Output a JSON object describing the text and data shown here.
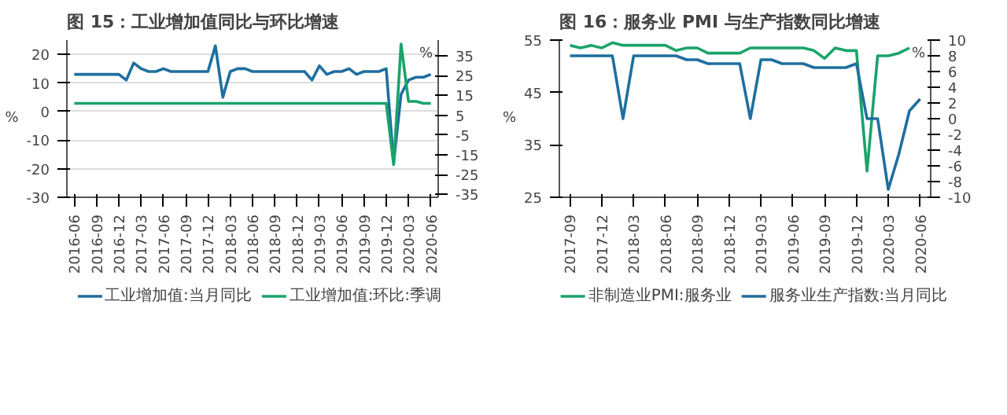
{
  "chart_data": [
    {
      "type": "line",
      "title": "图 15：工业增加值同比与环比增速",
      "ylabel": "%",
      "y2label": "%",
      "x": [
        "2016-06",
        "2016-07",
        "2016-08",
        "2016-09",
        "2016-10",
        "2016-11",
        "2016-12",
        "2017-01",
        "2017-02",
        "2017-03",
        "2017-04",
        "2017-05",
        "2017-06",
        "2017-07",
        "2017-08",
        "2017-09",
        "2017-10",
        "2017-11",
        "2017-12",
        "2018-01",
        "2018-02",
        "2018-03",
        "2018-04",
        "2018-05",
        "2018-06",
        "2018-07",
        "2018-08",
        "2018-09",
        "2018-10",
        "2018-11",
        "2018-12",
        "2019-01",
        "2019-02",
        "2019-03",
        "2019-04",
        "2019-05",
        "2019-06",
        "2019-07",
        "2019-08",
        "2019-09",
        "2019-10",
        "2019-11",
        "2019-12",
        "2020-01",
        "2020-02",
        "2020-03",
        "2020-04",
        "2020-05",
        "2020-06"
      ],
      "series": [
        {
          "name": "工业增加值:当月同比",
          "color": "#1f6f9f",
          "values": [
            13,
            13,
            13,
            13,
            13,
            13,
            13,
            11,
            17,
            15,
            14,
            14,
            15,
            14,
            14,
            14,
            14,
            14,
            14,
            23,
            5,
            14,
            15,
            15,
            14,
            14,
            14,
            14,
            14,
            14,
            14,
            14,
            11,
            16,
            13,
            14,
            14,
            15,
            13,
            14,
            14,
            14,
            15,
            -18,
            6,
            11,
            12,
            12,
            13
          ]
        },
        {
          "name": "工业增加值:环比:季调",
          "color": "#1aa36b",
          "axis": "y2",
          "values": [
            11,
            11,
            11,
            11,
            11,
            11,
            11,
            11,
            11,
            11,
            11,
            11,
            11,
            11,
            11,
            11,
            11,
            11,
            11,
            11,
            11,
            11,
            11,
            11,
            11,
            11,
            11,
            11,
            11,
            11,
            11,
            11,
            11,
            11,
            11,
            11,
            11,
            11,
            11,
            11,
            11,
            11,
            11,
            -20,
            41,
            12,
            12,
            11,
            11
          ]
        }
      ],
      "xlim": [
        "2016-05",
        "2020-07"
      ],
      "xticks": [
        "2016-06",
        "2016-09",
        "2016-12",
        "2017-03",
        "2017-06",
        "2017-09",
        "2017-12",
        "2018-03",
        "2018-06",
        "2018-09",
        "2018-12",
        "2019-03",
        "2019-06",
        "2019-09",
        "2019-12",
        "2020-03",
        "2020-06"
      ],
      "ylim": [
        -30,
        25
      ],
      "yticks": [
        -30,
        -20,
        -10,
        0,
        10,
        20
      ],
      "y2lim": [
        -36.5,
        43
      ],
      "y2ticks": [
        -35,
        -25,
        -15,
        -5,
        5,
        15,
        25,
        35
      ],
      "grid": "y",
      "legend": "bottom"
    },
    {
      "type": "line",
      "title": "图 16：服务业 PMI 与生产指数同比增速",
      "ylabel": "%",
      "y2label": "%",
      "x": [
        "2017-09",
        "2017-10",
        "2017-11",
        "2017-12",
        "2018-01",
        "2018-02",
        "2018-03",
        "2018-04",
        "2018-05",
        "2018-06",
        "2018-07",
        "2018-08",
        "2018-09",
        "2018-10",
        "2018-11",
        "2018-12",
        "2019-01",
        "2019-02",
        "2019-03",
        "2019-04",
        "2019-05",
        "2019-06",
        "2019-07",
        "2019-08",
        "2019-09",
        "2019-10",
        "2019-11",
        "2019-12",
        "2020-01",
        "2020-02",
        "2020-03",
        "2020-04",
        "2020-05",
        "2020-06"
      ],
      "series": [
        {
          "name": "非制造业PMI:服务业",
          "color": "#1aa36b",
          "values": [
            54,
            53.5,
            54,
            53.5,
            54.5,
            54,
            54,
            54,
            54,
            54,
            53,
            53.5,
            53.5,
            52.5,
            52.5,
            52.5,
            52.5,
            53.5,
            53.5,
            53.5,
            53.5,
            53.5,
            53.5,
            53,
            51.5,
            53.5,
            53,
            53,
            30,
            52,
            52,
            52.5,
            53.5,
            null
          ]
        },
        {
          "name": "服务业生产指数:当月同比",
          "color": "#1f6f9f",
          "axis": "y2",
          "values": [
            8,
            8,
            8,
            8,
            8,
            0,
            8,
            8,
            8,
            8,
            8,
            7.5,
            7.5,
            7,
            7,
            7,
            7,
            0,
            7.5,
            7.5,
            7,
            7,
            7,
            6.5,
            6.5,
            6.5,
            6.5,
            7,
            0,
            0,
            -9,
            -4.5,
            1,
            2.5
          ]
        }
      ],
      "xlim": [
        "2017-08",
        "2020-07"
      ],
      "xticks": [
        "2017-09",
        "2017-12",
        "2018-03",
        "2018-06",
        "2018-09",
        "2018-12",
        "2019-03",
        "2019-06",
        "2019-09",
        "2019-12",
        "2020-03",
        "2020-06"
      ],
      "ylim": [
        25,
        55
      ],
      "yticks": [
        25,
        35,
        45,
        55
      ],
      "y2lim": [
        -10,
        10
      ],
      "y2ticks": [
        -10,
        -8,
        -6,
        -4,
        -2,
        0,
        2,
        4,
        6,
        8,
        10
      ],
      "grid": false,
      "legend": "bottom"
    }
  ]
}
